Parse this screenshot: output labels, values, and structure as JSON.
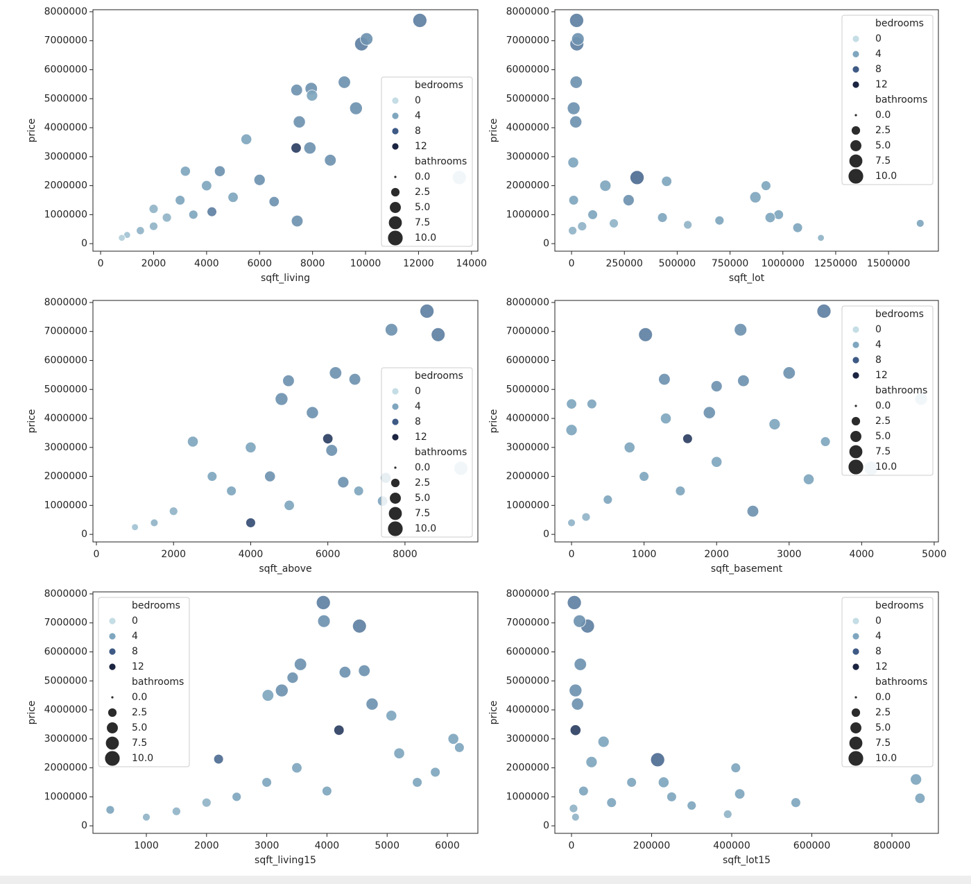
{
  "chart_data": [
    {
      "type": "scatter",
      "x_label": "sqft_living",
      "y_label": "price",
      "xlim": [
        -290,
        14240
      ],
      "ylim": [
        -260000,
        8070000
      ],
      "xticks": [
        0,
        2000,
        4000,
        6000,
        8000,
        10000,
        12000,
        14000
      ],
      "yticks": [
        0,
        1000000,
        2000000,
        3000000,
        4000000,
        5000000,
        6000000,
        7000000,
        8000000
      ],
      "x": [
        12050,
        9850,
        10040,
        9200,
        9640,
        7400,
        7950,
        7980,
        7500,
        13540,
        8670,
        7380,
        7900,
        7420,
        6550,
        5500,
        3000,
        2500,
        2000,
        1500,
        1000,
        4000,
        3500,
        4500,
        6000,
        2000,
        800,
        5000,
        4200,
        3200
      ],
      "values": [
        7700000,
        6890000,
        7060000,
        5570000,
        4670000,
        5300000,
        5350000,
        5110000,
        4200000,
        2280000,
        2880000,
        3300000,
        3300000,
        780000,
        1450000,
        3600000,
        1500000,
        900000,
        600000,
        450000,
        300000,
        2000000,
        1000000,
        2500000,
        2200000,
        1200000,
        200000,
        1600000,
        1100000,
        2500000
      ],
      "hue": [
        6,
        6,
        5,
        5,
        5,
        5,
        5,
        4,
        5,
        1,
        5,
        10,
        5,
        5,
        5,
        4,
        4,
        3,
        3,
        3,
        2,
        4,
        4,
        5,
        5,
        3,
        1,
        4,
        6,
        4
      ],
      "size": [
        8,
        7.75,
        6,
        5.75,
        6.25,
        5,
        5.75,
        4.5,
        5.5,
        8,
        5,
        3.5,
        5.5,
        5,
        3.5,
        4,
        3,
        2.5,
        2,
        1.75,
        1,
        3.5,
        2.5,
        4,
        4.5,
        2.5,
        1,
        3.5,
        3,
        3.25
      ],
      "legend": {
        "loc": "lower right",
        "hue_title": "bedrooms",
        "hue_levels": [
          0,
          4,
          8,
          12
        ],
        "hue_colors": [
          "#c5dde5",
          "#7fa6be",
          "#3e5a85",
          "#1b2440"
        ],
        "size_title": "bathrooms",
        "size_levels": [
          {
            "value": 0,
            "label": "0.0"
          },
          {
            "value": 2.5,
            "label": "2.5"
          },
          {
            "value": 5,
            "label": "5.0"
          },
          {
            "value": 7.5,
            "label": "7.5"
          },
          {
            "value": 10,
            "label": "10.0"
          }
        ]
      }
    },
    {
      "type": "scatter",
      "x_label": "sqft_lot",
      "y_label": "price",
      "xlim": [
        -79000,
        1736000
      ],
      "ylim": [
        -260000,
        8070000
      ],
      "xticks": [
        0,
        250000,
        500000,
        750000,
        1000000,
        1250000,
        1500000
      ],
      "yticks": [
        0,
        1000000,
        2000000,
        3000000,
        4000000,
        5000000,
        6000000,
        7000000,
        8000000
      ],
      "x": [
        24000,
        25000,
        30000,
        22000,
        10000,
        20000,
        310000,
        160000,
        450000,
        920000,
        870000,
        980000,
        1070000,
        1650000,
        1180000,
        430000,
        270000,
        100000,
        50000,
        5000,
        10000,
        700000,
        550000,
        8000,
        200000,
        940000
      ],
      "values": [
        7700000,
        6890000,
        7060000,
        5570000,
        4670000,
        4200000,
        2280000,
        2000000,
        2150000,
        2000000,
        1600000,
        1000000,
        550000,
        700000,
        200000,
        900000,
        1500000,
        1000000,
        600000,
        450000,
        1500000,
        800000,
        650000,
        2800000,
        700000,
        900000
      ],
      "hue": [
        6,
        6,
        5,
        5,
        5,
        5,
        7,
        4,
        4,
        4,
        4,
        4,
        4,
        4,
        3,
        4,
        5,
        4,
        3,
        3,
        4,
        4,
        3,
        4,
        3,
        4
      ],
      "size": [
        8,
        7.75,
        6,
        5.75,
        6.25,
        5.5,
        8,
        4.5,
        3.5,
        3,
        4.5,
        3,
        3,
        1.5,
        1,
        3,
        4.5,
        3,
        2.5,
        2,
        3,
        2.5,
        2,
        4,
        2.5,
        3.5
      ],
      "legend": {
        "loc": "upper right",
        "hue_title": "bedrooms",
        "hue_levels": [
          0,
          4,
          8,
          12
        ],
        "hue_colors": [
          "#c5dde5",
          "#7fa6be",
          "#3e5a85",
          "#1b2440"
        ],
        "size_title": "bathrooms",
        "size_levels": [
          {
            "value": 0,
            "label": "0.0"
          },
          {
            "value": 2.5,
            "label": "2.5"
          },
          {
            "value": 5,
            "label": "5.0"
          },
          {
            "value": 7.5,
            "label": "7.5"
          },
          {
            "value": 10,
            "label": "10.0"
          }
        ]
      }
    },
    {
      "type": "scatter",
      "x_label": "sqft_above",
      "y_label": "price",
      "xlim": [
        -90,
        9890
      ],
      "ylim": [
        -260000,
        8070000
      ],
      "xticks": [
        0,
        2000,
        4000,
        6000,
        8000
      ],
      "yticks": [
        0,
        1000000,
        2000000,
        3000000,
        4000000,
        5000000,
        6000000,
        7000000,
        8000000
      ],
      "x": [
        8570,
        8860,
        7650,
        6200,
        6700,
        4980,
        4800,
        9450,
        7500,
        7420,
        6000,
        6100,
        5600,
        4000,
        3000,
        2000,
        1500,
        1000,
        3500,
        4500,
        4000,
        2500,
        6400,
        5000,
        6800
      ],
      "values": [
        7700000,
        6890000,
        7060000,
        5570000,
        5350000,
        5300000,
        4670000,
        2280000,
        1950000,
        1150000,
        3300000,
        2900000,
        4200000,
        3000000,
        2000000,
        800000,
        400000,
        250000,
        1500000,
        2000000,
        400000,
        3200000,
        1800000,
        1000000,
        1500000
      ],
      "hue": [
        6,
        6,
        5,
        5,
        5,
        5,
        5,
        1,
        4,
        4,
        10,
        5,
        5,
        4,
        4,
        3,
        3,
        2,
        4,
        5,
        9,
        4,
        5,
        4,
        4
      ],
      "size": [
        8,
        7.75,
        6,
        5.75,
        5,
        5,
        6.25,
        8,
        4,
        3.5,
        3.5,
        5,
        5.5,
        4,
        3,
        2,
        1.5,
        1,
        3,
        4,
        3,
        4,
        4.5,
        3.5,
        3
      ],
      "legend": {
        "loc": "lower right",
        "hue_title": "bedrooms",
        "hue_levels": [
          0,
          4,
          8,
          12
        ],
        "hue_colors": [
          "#c5dde5",
          "#7fa6be",
          "#3e5a85",
          "#1b2440"
        ],
        "size_title": "bathrooms",
        "size_levels": [
          {
            "value": 0,
            "label": "0.0"
          },
          {
            "value": 2.5,
            "label": "2.5"
          },
          {
            "value": 5,
            "label": "5.0"
          },
          {
            "value": 7.5,
            "label": "7.5"
          },
          {
            "value": 10,
            "label": "10.0"
          }
        ]
      }
    },
    {
      "type": "scatter",
      "x_label": "sqft_basement",
      "y_label": "price",
      "xlim": [
        -230,
        5058
      ],
      "ylim": [
        -260000,
        8070000
      ],
      "xticks": [
        0,
        1000,
        2000,
        3000,
        4000,
        5000
      ],
      "yticks": [
        0,
        1000000,
        2000000,
        3000000,
        4000000,
        5000000,
        6000000,
        7000000,
        8000000
      ],
      "x": [
        3480,
        1020,
        2330,
        3000,
        1280,
        2370,
        2000,
        4820,
        280,
        0,
        4130,
        3500,
        3270,
        2800,
        1300,
        1900,
        2500,
        1000,
        500,
        0,
        200,
        1500,
        2000,
        1600,
        800,
        0
      ],
      "values": [
        7700000,
        6890000,
        7060000,
        5570000,
        5350000,
        5300000,
        5110000,
        4670000,
        4500000,
        4500000,
        2280000,
        3200000,
        1900000,
        3800000,
        4000000,
        4200000,
        800000,
        2000000,
        1200000,
        400000,
        600000,
        1500000,
        2500000,
        3300000,
        3000000,
        3600000
      ],
      "hue": [
        6,
        6,
        5,
        5,
        5,
        5,
        5,
        1,
        4,
        4,
        1,
        4,
        4,
        4,
        4,
        5,
        5,
        4,
        4,
        3,
        3,
        4,
        4,
        10,
        4,
        4
      ],
      "size": [
        8,
        7.75,
        6,
        5.75,
        5,
        5,
        4.5,
        6,
        3,
        3.5,
        8,
        3,
        4,
        4.5,
        4,
        5.5,
        5,
        3,
        2.5,
        1.5,
        2,
        3,
        4,
        3,
        4,
        4.5
      ],
      "legend": {
        "loc": "upper right",
        "hue_title": "bedrooms",
        "hue_levels": [
          0,
          4,
          8,
          12
        ],
        "hue_colors": [
          "#c5dde5",
          "#7fa6be",
          "#3e5a85",
          "#1b2440"
        ],
        "size_title": "bathrooms",
        "size_levels": [
          {
            "value": 0,
            "label": "0.0"
          },
          {
            "value": 2.5,
            "label": "2.5"
          },
          {
            "value": 5,
            "label": "5.0"
          },
          {
            "value": 7.5,
            "label": "7.5"
          },
          {
            "value": 10,
            "label": "10.0"
          }
        ]
      }
    },
    {
      "type": "scatter",
      "x_label": "sqft_living15",
      "y_label": "price",
      "xlim": [
        113,
        6507
      ],
      "ylim": [
        -260000,
        8070000
      ],
      "xticks": [
        1000,
        2000,
        3000,
        4000,
        5000,
        6000
      ],
      "yticks": [
        0,
        1000000,
        2000000,
        3000000,
        4000000,
        5000000,
        6000000,
        7000000,
        8000000
      ],
      "x": [
        3940,
        4540,
        3950,
        3560,
        4620,
        4300,
        3430,
        3250,
        3020,
        4750,
        5070,
        6100,
        6200,
        5800,
        5500,
        400,
        1000,
        1500,
        2000,
        2500,
        3000,
        3500,
        4000,
        4200,
        2200,
        5200
      ],
      "values": [
        7700000,
        6890000,
        7060000,
        5570000,
        5350000,
        5300000,
        5110000,
        4670000,
        4500000,
        4200000,
        3800000,
        3000000,
        2700000,
        1850000,
        1500000,
        550000,
        300000,
        500000,
        800000,
        1000000,
        1500000,
        2000000,
        1200000,
        3300000,
        2300000,
        2500000
      ],
      "hue": [
        6,
        6,
        5,
        5,
        5,
        5,
        5,
        5,
        4,
        5,
        4,
        4,
        4,
        4,
        4,
        4,
        3,
        3,
        3,
        4,
        4,
        4,
        4,
        10,
        7,
        4
      ],
      "size": [
        8,
        7.75,
        6,
        5.75,
        5,
        5,
        4.5,
        6.25,
        5,
        5.5,
        4,
        4,
        3,
        3,
        3,
        2,
        1.5,
        2,
        2.5,
        2.5,
        3,
        3.5,
        3,
        3.5,
        3,
        4
      ],
      "legend": {
        "loc": "upper left",
        "hue_title": "bedrooms",
        "hue_levels": [
          0,
          4,
          8,
          12
        ],
        "hue_colors": [
          "#c5dde5",
          "#7fa6be",
          "#3e5a85",
          "#1b2440"
        ],
        "size_title": "bathrooms",
        "size_levels": [
          {
            "value": 0,
            "label": "0.0"
          },
          {
            "value": 2.5,
            "label": "2.5"
          },
          {
            "value": 5,
            "label": "5.0"
          },
          {
            "value": 7.5,
            "label": "7.5"
          },
          {
            "value": 10,
            "label": "10.0"
          }
        ]
      }
    },
    {
      "type": "scatter",
      "x_label": "sqft_lot15",
      "y_label": "price",
      "xlim": [
        -41600,
        916000
      ],
      "ylim": [
        -260000,
        8070000
      ],
      "xticks": [
        0,
        200000,
        400000,
        600000,
        800000
      ],
      "yticks": [
        0,
        1000000,
        2000000,
        3000000,
        4000000,
        5000000,
        6000000,
        7000000,
        8000000
      ],
      "x": [
        7000,
        40000,
        20000,
        22000,
        10000,
        15000,
        215000,
        80000,
        410000,
        860000,
        870000,
        560000,
        420000,
        390000,
        150000,
        230000,
        50000,
        5000,
        10000,
        100000,
        300000,
        250000,
        10000,
        30000
      ],
      "values": [
        7700000,
        6890000,
        7060000,
        5570000,
        4670000,
        4200000,
        2280000,
        2900000,
        2000000,
        1600000,
        950000,
        800000,
        1100000,
        400000,
        1500000,
        1500000,
        2200000,
        600000,
        300000,
        800000,
        700000,
        1000000,
        3300000,
        1200000
      ],
      "hue": [
        6,
        6,
        5,
        5,
        5,
        5,
        7,
        4,
        4,
        4,
        4,
        4,
        4,
        3,
        4,
        4,
        4,
        3,
        3,
        4,
        4,
        4,
        10,
        4
      ],
      "size": [
        8,
        7.75,
        6,
        5.75,
        6.25,
        5.5,
        8,
        4.5,
        3,
        4.5,
        3.5,
        3,
        3.5,
        2,
        3,
        4,
        4.5,
        2,
        1.5,
        3,
        2.5,
        3,
        4,
        3
      ],
      "legend": {
        "loc": "upper right",
        "hue_title": "bedrooms",
        "hue_levels": [
          0,
          4,
          8,
          12
        ],
        "hue_colors": [
          "#c5dde5",
          "#7fa6be",
          "#3e5a85",
          "#1b2440"
        ],
        "size_title": "bathrooms",
        "size_levels": [
          {
            "value": 0,
            "label": "0.0"
          },
          {
            "value": 2.5,
            "label": "2.5"
          },
          {
            "value": 5,
            "label": "5.0"
          },
          {
            "value": 7.5,
            "label": "7.5"
          },
          {
            "value": 10,
            "label": "10.0"
          }
        ]
      }
    }
  ]
}
